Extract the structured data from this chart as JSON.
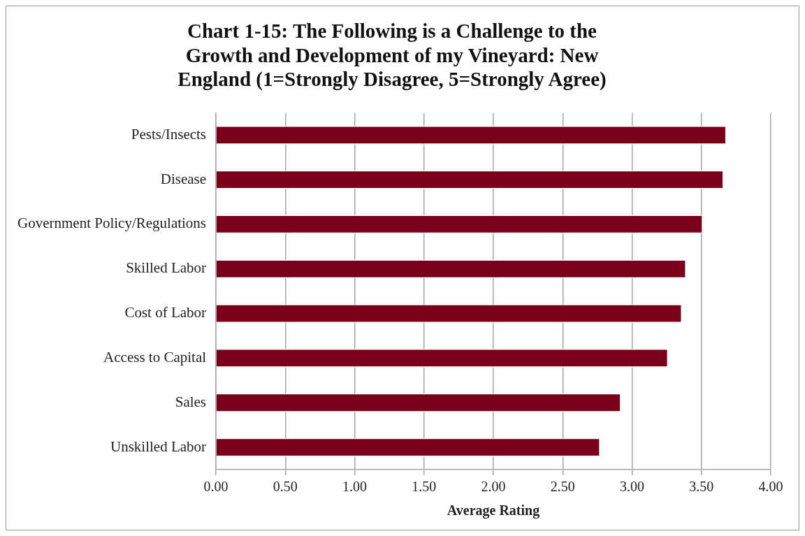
{
  "chart_data": {
    "type": "bar",
    "orientation": "horizontal",
    "title": "Chart 1-15: The Following is a Challenge to the Growth and Development of my Vineyard: New England (1=Strongly Disagree, 5=Strongly Agree)",
    "xlabel": "Average Rating",
    "categories": [
      "Pests/Insects",
      "Disease",
      "Government Policy/Regulations",
      "Skilled Labor",
      "Cost of Labor",
      "Access to Capital",
      "Sales",
      "Unskilled Labor"
    ],
    "values": [
      3.68,
      3.66,
      3.51,
      3.39,
      3.36,
      3.26,
      2.92,
      2.77
    ],
    "color": "#7a0019",
    "xlim": [
      0,
      4
    ],
    "xticks": [
      {
        "value": 0,
        "label": "0.00"
      },
      {
        "value": 0.5,
        "label": "0.50"
      },
      {
        "value": 1,
        "label": "1.00"
      },
      {
        "value": 1.5,
        "label": "1.50"
      },
      {
        "value": 2,
        "label": "2.00"
      },
      {
        "value": 2.5,
        "label": "2.50"
      },
      {
        "value": 3,
        "label": "3.00"
      },
      {
        "value": 3.5,
        "label": "3.50"
      },
      {
        "value": 4,
        "label": "4.00"
      }
    ],
    "grid": "x",
    "legend": false
  }
}
